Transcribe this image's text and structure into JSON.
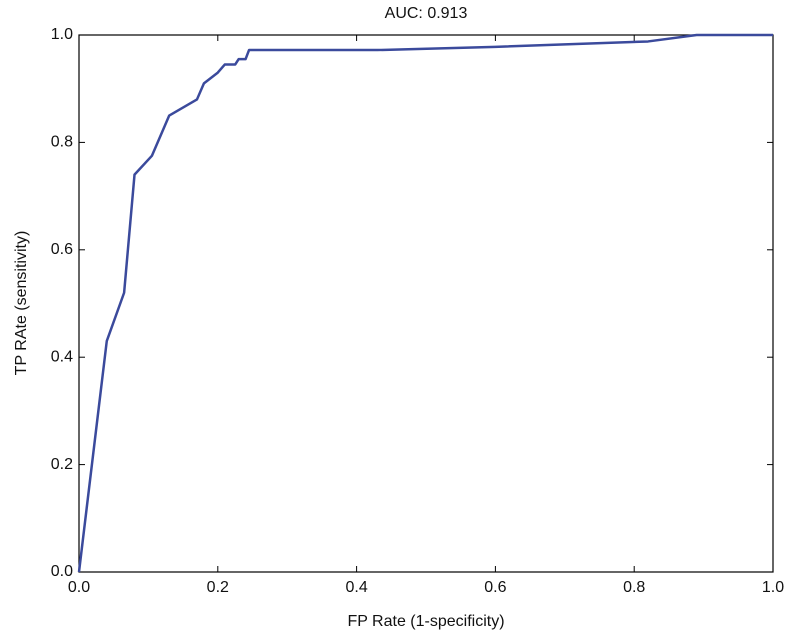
{
  "chart_data": {
    "type": "line",
    "title": "AUC: 0.913",
    "xlabel": "FP Rate (1-specificity)",
    "ylabel": "TP RAte (sensitivity)",
    "x": [
      0,
      0.04,
      0.065,
      0.08,
      0.105,
      0.13,
      0.17,
      0.18,
      0.2,
      0.21,
      0.225,
      0.23,
      0.24,
      0.245,
      0.43,
      0.6,
      0.82,
      0.89,
      1.0
    ],
    "values": [
      0,
      0.43,
      0.52,
      0.74,
      0.775,
      0.85,
      0.88,
      0.91,
      0.93,
      0.945,
      0.945,
      0.955,
      0.955,
      0.972,
      0.972,
      0.978,
      0.988,
      1.0,
      1.0
    ],
    "color": "#3b4a9c",
    "xlim": [
      0,
      1
    ],
    "ylim": [
      0,
      1
    ],
    "xticks": [
      {
        "value": 0,
        "label": "0.0"
      },
      0.2,
      0.4,
      0.6,
      0.8,
      {
        "value": 1,
        "label": "1.0"
      }
    ],
    "yticks": [
      {
        "value": 0,
        "label": "0.0"
      },
      0.2,
      0.4,
      0.6,
      0.8,
      {
        "value": 1,
        "label": "1.0"
      }
    ]
  }
}
